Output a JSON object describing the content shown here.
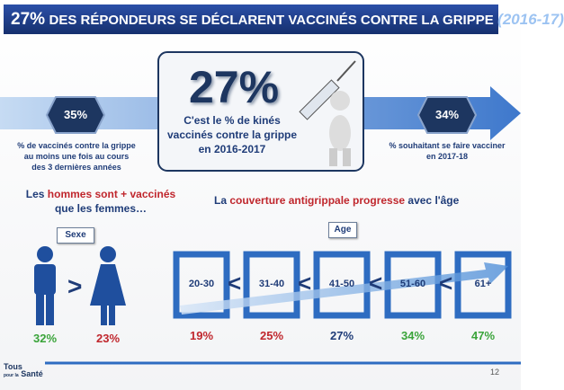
{
  "header": {
    "highlight": "27%",
    "title": "DES RÉPONDEURS SE DÉCLARENT VACCINÉS CONTRE LA GRIPPE",
    "period": "(2016-17)"
  },
  "summary": {
    "left": {
      "value": "35%",
      "text": "% de vaccinés contre la grippe au moins une fois au cours des 3 dernières années"
    },
    "center": {
      "value": "27%",
      "text": "C'est le % de kinés vaccinés contre la grippe en 2016-2017"
    },
    "right": {
      "value": "34%",
      "text": "% souhaitant se faire vacciner en 2017-18"
    }
  },
  "sex": {
    "heading": [
      "Les ",
      "hommes sont + vaccinés",
      " que les femmes…"
    ],
    "label": "Sexe",
    "comparator": ">",
    "men": "32%",
    "women": "23%"
  },
  "age": {
    "heading": [
      "La ",
      "couverture antigrippale progresse",
      " avec l'âge"
    ],
    "label": "Age",
    "comparator": "<",
    "groups": [
      {
        "range": "20-30",
        "value": "19%",
        "color": "#c0272d"
      },
      {
        "range": "31-40",
        "value": "25%",
        "color": "#c0272d"
      },
      {
        "range": "41-50",
        "value": "27%",
        "color": "#1f3c78"
      },
      {
        "range": "51-60",
        "value": "34%",
        "color": "#3aa43a"
      },
      {
        "range": "61+",
        "value": "47%",
        "color": "#3aa43a"
      }
    ]
  },
  "footer": {
    "logo": [
      "Tous",
      "pour la",
      "Santé"
    ],
    "page": "12"
  }
}
